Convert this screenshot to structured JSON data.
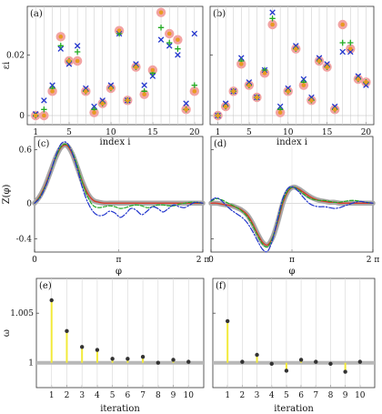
{
  "chart_data": [
    {
      "panel": "(a)",
      "type": "scatter",
      "xlabel": "index  i",
      "ylabel": "εi",
      "xlim": [
        0,
        21
      ],
      "ylim": [
        -0.003,
        0.036
      ],
      "xticks": [
        1,
        5,
        10,
        15,
        20
      ],
      "yticks": [
        0,
        0.02
      ],
      "ytick_labels": [
        "0",
        "0.02"
      ],
      "grid_x": [
        1,
        2,
        3,
        4,
        5,
        6,
        7,
        8,
        9,
        10,
        11,
        12,
        13,
        14,
        15,
        16,
        17,
        18,
        19,
        20
      ],
      "series": [
        {
          "marker": "large-circle",
          "color": "#f2a3a3",
          "x": [
            1,
            2,
            3,
            4,
            5,
            6,
            7,
            8,
            9,
            10,
            11,
            12,
            13,
            14,
            15,
            16,
            17,
            18,
            19,
            20
          ],
          "values": [
            0,
            0,
            0.008,
            0.026,
            0.018,
            0.018,
            0.008,
            0.001,
            0.004,
            0.009,
            0.028,
            0.005,
            0.016,
            0.007,
            0.015,
            0.034,
            0.027,
            0.025,
            0.002,
            0.008
          ]
        },
        {
          "marker": "x",
          "color": "#1f33cc",
          "x": [
            1,
            2,
            3,
            4,
            5,
            6,
            7,
            8,
            9,
            10,
            11,
            12,
            13,
            14,
            15,
            16,
            17,
            18,
            19,
            20
          ],
          "values": [
            0.0005,
            0.005,
            0.01,
            0.022,
            0.017,
            0.023,
            0.009,
            0.003,
            0.005,
            0.01,
            0.027,
            0.005,
            0.017,
            0.01,
            0.013,
            0.025,
            0.023,
            0.02,
            0.004,
            0.027
          ]
        },
        {
          "marker": "plus",
          "color": "#22aa22",
          "x": [
            1,
            2,
            3,
            4,
            5,
            6,
            7,
            8,
            9,
            10,
            11,
            12,
            13,
            14,
            15,
            16,
            17,
            18,
            19,
            20
          ],
          "values": [
            0,
            0.002,
            0.009,
            0.023,
            0.018,
            0.021,
            0.008,
            0.002,
            0.004,
            0.009,
            0.027,
            0.005,
            0.016,
            0.008,
            0.014,
            0.029,
            0.024,
            0.022,
            0.002,
            0.01
          ]
        },
        {
          "marker": "small-circle",
          "color": "#e89a20",
          "x": [
            1,
            2,
            3,
            4,
            5,
            6,
            7,
            8,
            9,
            10,
            11,
            12,
            13,
            14,
            15,
            16,
            17,
            18,
            19,
            20
          ],
          "values": [
            0,
            0,
            0.008,
            0.026,
            0.018,
            0.018,
            0.008,
            0.001,
            0.004,
            0.009,
            0.028,
            0.005,
            0.016,
            0.007,
            0.015,
            0.034,
            0.027,
            0.025,
            0.002,
            0.008
          ]
        }
      ]
    },
    {
      "panel": "(b)",
      "type": "scatter",
      "xlabel": "index  i",
      "xlim": [
        0,
        21
      ],
      "ylim": [
        -0.003,
        0.036
      ],
      "xticks": [
        1,
        5,
        10,
        15,
        20
      ],
      "yticks": [
        0,
        0.02
      ],
      "grid_x": [
        1,
        2,
        3,
        4,
        5,
        6,
        7,
        8,
        9,
        10,
        11,
        12,
        13,
        14,
        15,
        16,
        17,
        18,
        19,
        20
      ],
      "series": [
        {
          "marker": "large-circle",
          "color": "#f2a3a3",
          "x": [
            1,
            2,
            3,
            4,
            5,
            6,
            7,
            8,
            9,
            10,
            11,
            12,
            13,
            14,
            15,
            16,
            17,
            18,
            19,
            20
          ],
          "values": [
            0,
            0.003,
            0.008,
            0.017,
            0.01,
            0.006,
            0.014,
            0.03,
            0.001,
            0.008,
            0.022,
            0.01,
            0.005,
            0.018,
            0.016,
            0.002,
            0.03,
            0.022,
            0.012,
            0.011
          ]
        },
        {
          "marker": "x",
          "color": "#1f33cc",
          "x": [
            1,
            2,
            3,
            4,
            5,
            6,
            7,
            8,
            9,
            10,
            11,
            12,
            13,
            14,
            15,
            16,
            17,
            18,
            19,
            20
          ],
          "values": [
            0,
            0.004,
            0.008,
            0.019,
            0.011,
            0.006,
            0.015,
            0.034,
            0.003,
            0.009,
            0.023,
            0.012,
            0.006,
            0.019,
            0.017,
            0.003,
            0.021,
            0.021,
            0.013,
            0.01
          ]
        },
        {
          "marker": "plus",
          "color": "#22aa22",
          "x": [
            1,
            2,
            3,
            4,
            5,
            6,
            7,
            8,
            9,
            10,
            11,
            12,
            13,
            14,
            15,
            16,
            17,
            18,
            19,
            20
          ],
          "values": [
            0,
            0.003,
            0.008,
            0.018,
            0.01,
            0.006,
            0.015,
            0.032,
            0.002,
            0.008,
            0.022,
            0.011,
            0.005,
            0.018,
            0.016,
            0.002,
            0.024,
            0.024,
            0.012,
            0.011
          ]
        },
        {
          "marker": "small-circle",
          "color": "#e89a20",
          "x": [
            1,
            2,
            3,
            4,
            5,
            6,
            7,
            8,
            9,
            10,
            11,
            12,
            13,
            14,
            15,
            16,
            17,
            18,
            19,
            20
          ],
          "values": [
            0,
            0.003,
            0.008,
            0.017,
            0.01,
            0.006,
            0.014,
            0.03,
            0.001,
            0.008,
            0.022,
            0.01,
            0.005,
            0.018,
            0.016,
            0.002,
            0.03,
            0.022,
            0.012,
            0.011
          ]
        }
      ]
    },
    {
      "panel": "(c)",
      "type": "line",
      "xlabel": "φ",
      "ylabel": "Z(φ)",
      "xlim": [
        0,
        6.2832
      ],
      "ylim": [
        -0.55,
        0.75
      ],
      "xticks": [
        0,
        3.1416,
        6.2832
      ],
      "xtick_labels": [
        "0",
        "π",
        "2 π"
      ],
      "yticks": [
        -0.4,
        0,
        0.6
      ],
      "ytick_labels": [
        "-0.4",
        "0",
        "0.6"
      ],
      "x": [
        0,
        0.2,
        0.4,
        0.6,
        0.8,
        1.0,
        1.2,
        1.4,
        1.6,
        1.8,
        2.0,
        2.2,
        2.4,
        2.6,
        2.8,
        3.0,
        3.2,
        3.4,
        3.6,
        3.8,
        4.0,
        4.2,
        4.4,
        4.6,
        4.8,
        5.0,
        5.2,
        5.4,
        5.6,
        5.8,
        6.0,
        6.2832
      ],
      "series": [
        {
          "style": "thick-gray",
          "color": "#a8a8a8",
          "values": [
            0,
            0.08,
            0.2,
            0.36,
            0.52,
            0.63,
            0.65,
            0.56,
            0.4,
            0.23,
            0.1,
            0.03,
            0.01,
            0,
            0,
            0,
            0,
            0,
            0,
            0,
            0,
            0,
            0,
            0,
            0,
            0,
            0,
            0,
            0,
            0,
            0,
            0
          ]
        },
        {
          "style": "solid-red",
          "color": "#d63a2a",
          "values": [
            0,
            0.08,
            0.2,
            0.36,
            0.52,
            0.63,
            0.65,
            0.56,
            0.4,
            0.23,
            0.1,
            0.03,
            0.01,
            0,
            0,
            0,
            0,
            0,
            0,
            0,
            0,
            0,
            0,
            0,
            0,
            0,
            0,
            0,
            0,
            0,
            0,
            0
          ]
        },
        {
          "style": "dashed-green",
          "color": "#22aa22",
          "values": [
            0,
            0.07,
            0.19,
            0.35,
            0.52,
            0.64,
            0.66,
            0.58,
            0.42,
            0.22,
            0.06,
            -0.03,
            -0.05,
            -0.04,
            -0.03,
            -0.04,
            -0.06,
            -0.05,
            -0.03,
            -0.02,
            -0.03,
            -0.05,
            -0.04,
            -0.02,
            -0.02,
            -0.03,
            -0.03,
            -0.01,
            0,
            0.01,
            0.01,
            0
          ]
        },
        {
          "style": "dashdot-blue",
          "color": "#1f33cc",
          "values": [
            0,
            0.06,
            0.18,
            0.35,
            0.54,
            0.67,
            0.68,
            0.57,
            0.38,
            0.16,
            0.0,
            -0.1,
            -0.14,
            -0.13,
            -0.09,
            -0.11,
            -0.16,
            -0.12,
            -0.06,
            -0.08,
            -0.13,
            -0.09,
            -0.04,
            -0.06,
            -0.1,
            -0.06,
            -0.02,
            -0.04,
            -0.05,
            -0.02,
            0.01,
            0
          ]
        }
      ]
    },
    {
      "panel": "(d)",
      "type": "line",
      "xlabel": "φ",
      "xlim": [
        0,
        6.2832
      ],
      "ylim": [
        -0.55,
        0.75
      ],
      "xticks": [
        0,
        3.1416,
        6.2832
      ],
      "xtick_labels": [
        "0",
        "π",
        "2 π"
      ],
      "yticks": [
        -0.4,
        0,
        0.6
      ],
      "x": [
        0,
        0.2,
        0.4,
        0.6,
        0.8,
        1.0,
        1.2,
        1.4,
        1.6,
        1.8,
        2.0,
        2.2,
        2.4,
        2.6,
        2.8,
        3.0,
        3.2,
        3.4,
        3.6,
        3.8,
        4.0,
        4.2,
        4.4,
        4.6,
        4.8,
        5.0,
        5.2,
        5.4,
        5.6,
        5.8,
        6.0,
        6.2832
      ],
      "series": [
        {
          "style": "thick-gray",
          "color": "#a8a8a8",
          "values": [
            0,
            0,
            -0.01,
            -0.02,
            -0.03,
            -0.05,
            -0.08,
            -0.13,
            -0.22,
            -0.34,
            -0.44,
            -0.47,
            -0.38,
            -0.2,
            0.01,
            0.14,
            0.18,
            0.16,
            0.12,
            0.08,
            0.05,
            0.03,
            0.02,
            0.01,
            0.01,
            0,
            0,
            0,
            0,
            0,
            0,
            0
          ]
        },
        {
          "style": "solid-red",
          "color": "#d63a2a",
          "values": [
            0,
            0,
            -0.01,
            -0.02,
            -0.03,
            -0.05,
            -0.08,
            -0.13,
            -0.22,
            -0.34,
            -0.44,
            -0.47,
            -0.38,
            -0.2,
            0.01,
            0.14,
            0.18,
            0.16,
            0.12,
            0.08,
            0.05,
            0.03,
            0.02,
            0.01,
            0.01,
            0,
            0,
            0,
            0,
            0,
            0,
            0
          ]
        },
        {
          "style": "dashed-green",
          "color": "#22aa22",
          "values": [
            0.02,
            0.05,
            0.04,
            0.01,
            -0.02,
            -0.05,
            -0.09,
            -0.15,
            -0.24,
            -0.36,
            -0.46,
            -0.49,
            -0.38,
            -0.18,
            0.03,
            0.15,
            0.18,
            0.15,
            0.1,
            0.06,
            0.04,
            0.03,
            0.03,
            0.02,
            0.01,
            0.01,
            0.02,
            0.03,
            0.03,
            0.02,
            0.01,
            0
          ]
        },
        {
          "style": "dashdot-blue",
          "color": "#1f33cc",
          "values": [
            0.03,
            0.06,
            0.03,
            -0.03,
            -0.08,
            -0.12,
            -0.16,
            -0.22,
            -0.31,
            -0.42,
            -0.52,
            -0.54,
            -0.4,
            -0.16,
            0.06,
            0.17,
            0.18,
            0.13,
            0.06,
            0.0,
            -0.03,
            -0.04,
            -0.04,
            -0.05,
            -0.06,
            -0.05,
            -0.03,
            -0.01,
            0.01,
            0.02,
            0.01,
            0
          ]
        }
      ]
    },
    {
      "panel": "(e)",
      "type": "bar",
      "xlabel": "iteration",
      "ylabel": "ω",
      "xlim": [
        0,
        11
      ],
      "ylim": [
        0.9975,
        1.0085
      ],
      "xticks": [
        1,
        2,
        3,
        4,
        5,
        6,
        7,
        8,
        9,
        10
      ],
      "yticks": [
        1.0,
        1.005
      ],
      "ytick_labels": [
        "1",
        "1.005"
      ],
      "baseline": 1.0,
      "categories": [
        1,
        2,
        3,
        4,
        5,
        6,
        7,
        8,
        9,
        10
      ],
      "values": [
        1.0063,
        1.0032,
        1.0016,
        1.0013,
        1.0004,
        1.0004,
        1.0006,
        1.0,
        1.0003,
        1.0001
      ]
    },
    {
      "panel": "(f)",
      "type": "bar",
      "xlabel": "iteration",
      "xlim": [
        0,
        11
      ],
      "ylim": [
        0.9975,
        1.0085
      ],
      "xticks": [
        1,
        2,
        3,
        4,
        5,
        6,
        7,
        8,
        9,
        10
      ],
      "yticks": [
        1.0,
        1.005
      ],
      "baseline": 1.0,
      "categories": [
        1,
        2,
        3,
        4,
        5,
        6,
        7,
        8,
        9,
        10
      ],
      "values": [
        1.0042,
        1.0001,
        1.0008,
        0.9999,
        0.9992,
        1.0003,
        1.0001,
        0.9999,
        0.9991,
        1.0001
      ]
    }
  ]
}
